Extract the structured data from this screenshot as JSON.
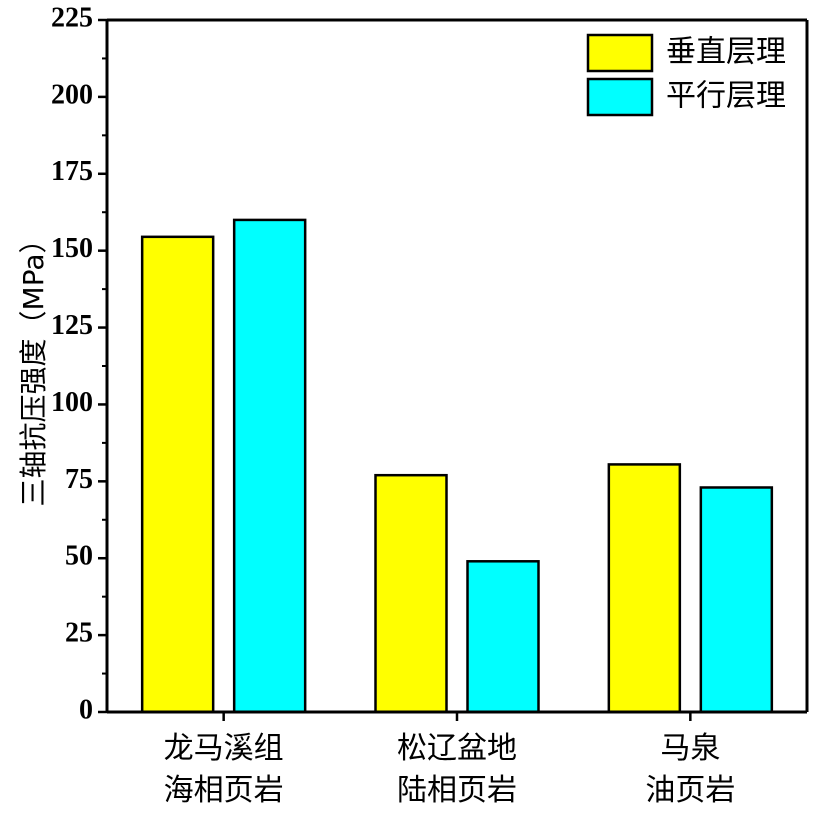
{
  "chart_data": {
    "type": "bar",
    "ylabel": "三轴抗压强度（MPa）",
    "xlabel": "",
    "ylim": [
      0,
      225
    ],
    "yticks": [
      0,
      25,
      50,
      75,
      100,
      125,
      150,
      175,
      200,
      225
    ],
    "categories": [
      [
        "龙马溪组",
        "海相页岩"
      ],
      [
        "松辽盆地",
        "陆相页岩"
      ],
      [
        "马泉",
        "油页岩"
      ]
    ],
    "series": [
      {
        "name": "垂直层理",
        "color": "#ffff00",
        "values": [
          154.5,
          77,
          80.5
        ]
      },
      {
        "name": "平行层理",
        "color": "#00ffff",
        "values": [
          160,
          49,
          73
        ]
      }
    ],
    "legend_position": "top-right",
    "grid": false
  }
}
